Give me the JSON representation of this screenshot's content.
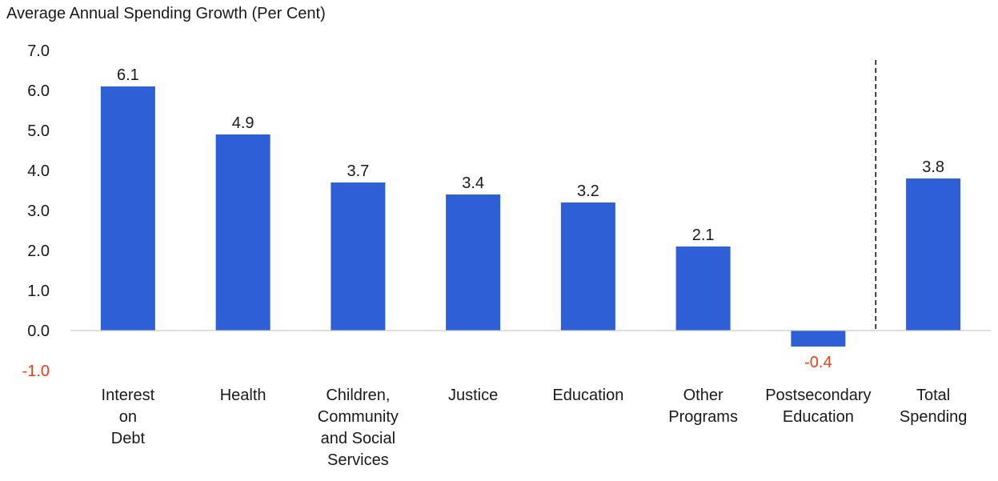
{
  "chart_data": {
    "type": "bar",
    "title": "Average Annual Spending Growth (Per Cent)",
    "xlabel": "",
    "ylabel": "",
    "ylim": [
      -1.0,
      7.0
    ],
    "yticks": [
      "7.0",
      "6.0",
      "5.0",
      "4.0",
      "3.0",
      "2.0",
      "1.0",
      "0.0",
      "-1.0"
    ],
    "categories": [
      [
        "Interest",
        "on",
        "Debt"
      ],
      [
        "Health"
      ],
      [
        "Children,",
        "Community",
        "and Social",
        "Services"
      ],
      [
        "Justice"
      ],
      [
        "Education"
      ],
      [
        "Other",
        "Programs"
      ],
      [
        "Postsecondary",
        "Education"
      ],
      [
        "Total",
        "Spending"
      ]
    ],
    "values": [
      6.1,
      4.9,
      3.7,
      3.4,
      3.2,
      2.1,
      -0.4,
      3.8
    ],
    "value_labels": [
      "6.1",
      "4.9",
      "3.7",
      "3.4",
      "3.2",
      "2.1",
      "-0.4",
      "3.8"
    ],
    "separator_before_last": true,
    "grid": false,
    "colors": {
      "bar": "#2f5fd6",
      "negative_text": "#e8401c",
      "text": "#1a1a1a",
      "axis": "#bfbfbf",
      "separator": "#000000"
    }
  }
}
